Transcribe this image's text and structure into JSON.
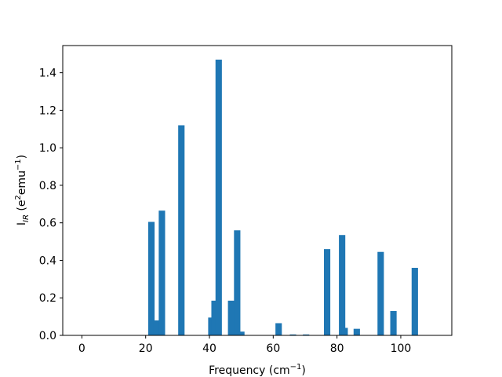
{
  "chart_data": {
    "type": "bar",
    "title": "",
    "xlabel": {
      "base": "Frequency (cm",
      "sup": "−1",
      "end": ")"
    },
    "ylabel": {
      "base": "I",
      "sub": "IR",
      "mid1": " (e",
      "sup1": "2",
      "mid2": "emu",
      "sup2": "−1",
      "end": ")"
    },
    "xlim": [
      -6,
      116
    ],
    "ylim": [
      0,
      1.545
    ],
    "xticks": [
      0,
      20,
      40,
      60,
      80,
      100
    ],
    "yticks": [
      0.0,
      0.2,
      0.4,
      0.6,
      0.8,
      1.0,
      1.2,
      1.4
    ],
    "ytick_labels": [
      "0.0",
      "0.2",
      "0.4",
      "0.6",
      "0.8",
      "1.0",
      "1.2",
      "1.4"
    ],
    "bar_width": 2.0,
    "color": "#1f77b4",
    "grid": false,
    "bars": [
      {
        "x": 21.8,
        "value": 0.605
      },
      {
        "x": 23.3,
        "value": 0.08
      },
      {
        "x": 25.1,
        "value": 0.665
      },
      {
        "x": 31.2,
        "value": 1.12
      },
      {
        "x": 40.6,
        "value": 0.095
      },
      {
        "x": 41.6,
        "value": 0.185
      },
      {
        "x": 42.9,
        "value": 1.47
      },
      {
        "x": 46.8,
        "value": 0.185
      },
      {
        "x": 48.7,
        "value": 0.56
      },
      {
        "x": 50.0,
        "value": 0.02
      },
      {
        "x": 61.7,
        "value": 0.065
      },
      {
        "x": 66.2,
        "value": 0.005
      },
      {
        "x": 70.3,
        "value": 0.005
      },
      {
        "x": 76.9,
        "value": 0.46
      },
      {
        "x": 81.6,
        "value": 0.535
      },
      {
        "x": 82.4,
        "value": 0.04
      },
      {
        "x": 86.2,
        "value": 0.035
      },
      {
        "x": 93.7,
        "value": 0.445
      },
      {
        "x": 97.7,
        "value": 0.13
      },
      {
        "x": 104.4,
        "value": 0.36
      }
    ]
  }
}
